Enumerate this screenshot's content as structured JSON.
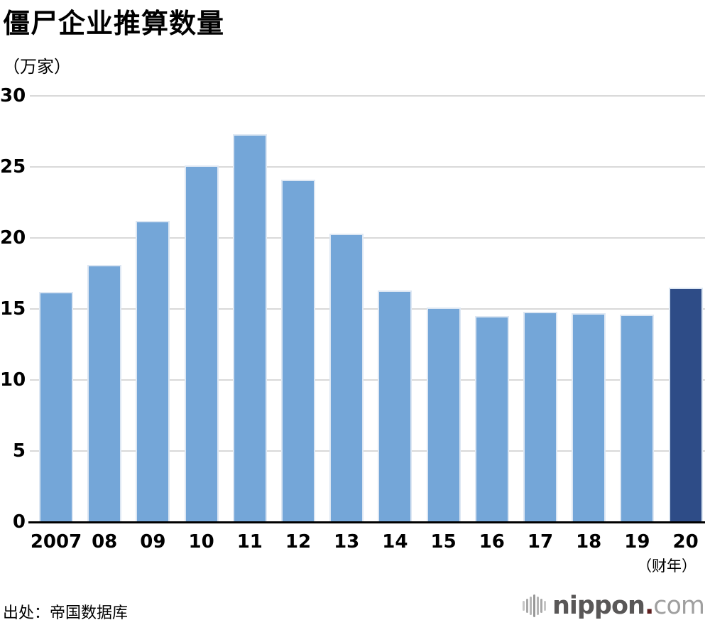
{
  "chart_data": {
    "type": "bar",
    "title": "僵尸企业推算数量",
    "unit_label": "（万家）",
    "x_unit_label": "（财年）",
    "categories": [
      "2007",
      "08",
      "09",
      "10",
      "11",
      "12",
      "13",
      "14",
      "15",
      "16",
      "17",
      "18",
      "19",
      "20"
    ],
    "values": [
      16.2,
      18.1,
      21.2,
      25.1,
      27.3,
      24.1,
      20.3,
      16.3,
      15.1,
      14.5,
      14.8,
      14.7,
      14.6,
      16.5
    ],
    "highlight_index": 13,
    "yticks": [
      30,
      25,
      20,
      15,
      10,
      5,
      0
    ],
    "ylim": [
      0,
      30
    ],
    "grid": true,
    "legend_position": "none",
    "colors": {
      "bar": "#74a6d8",
      "bar_highlight": "#2e4c87",
      "bar_border": "#dde7f3",
      "gridline": "#d9d9d9",
      "axis": "#000000",
      "text": "#000000"
    }
  },
  "source": {
    "label": "出处：帝国数据库"
  },
  "logo": {
    "text_bold": "nippon",
    "dot": ".",
    "text_light": "com",
    "colors": {
      "bold": "#595757",
      "dot": "#5e1f1f",
      "light": "#9f9f9f",
      "wave_outer": "#c6c6c6",
      "wave_mid": "#a8a8a8",
      "wave_inner": "#b5b5b5",
      "wave_center": "#989898"
    },
    "wave_heights": [
      14,
      20,
      26,
      32,
      26,
      20,
      14
    ]
  }
}
